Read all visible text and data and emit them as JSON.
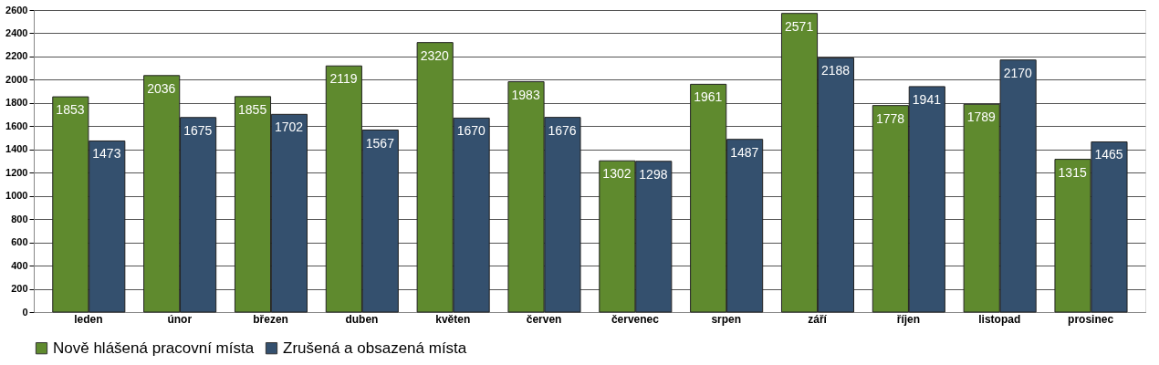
{
  "chart_data": {
    "type": "bar",
    "categories": [
      "leden",
      "únor",
      "březen",
      "duben",
      "květen",
      "červen",
      "červenec",
      "srpen",
      "září",
      "říjen",
      "listopad",
      "prosinec"
    ],
    "series": [
      {
        "name": "Nově hlášená pracovní místa",
        "color": "#5f8a2e",
        "values": [
          1853,
          2036,
          1855,
          2119,
          2320,
          1983,
          1302,
          1961,
          2571,
          1778,
          1789,
          1315
        ]
      },
      {
        "name": "Zrušená a obsazená místa",
        "color": "#34506e",
        "values": [
          1473,
          1675,
          1702,
          1567,
          1670,
          1676,
          1298,
          1487,
          2188,
          1941,
          2170,
          1465
        ]
      }
    ],
    "ylim": [
      0,
      2600
    ],
    "yticks": [
      0,
      200,
      400,
      600,
      800,
      1000,
      1200,
      1400,
      1600,
      1800,
      2000,
      2200,
      2400,
      2600
    ],
    "grid": "y",
    "legend": "bottom",
    "data_labels": true
  }
}
